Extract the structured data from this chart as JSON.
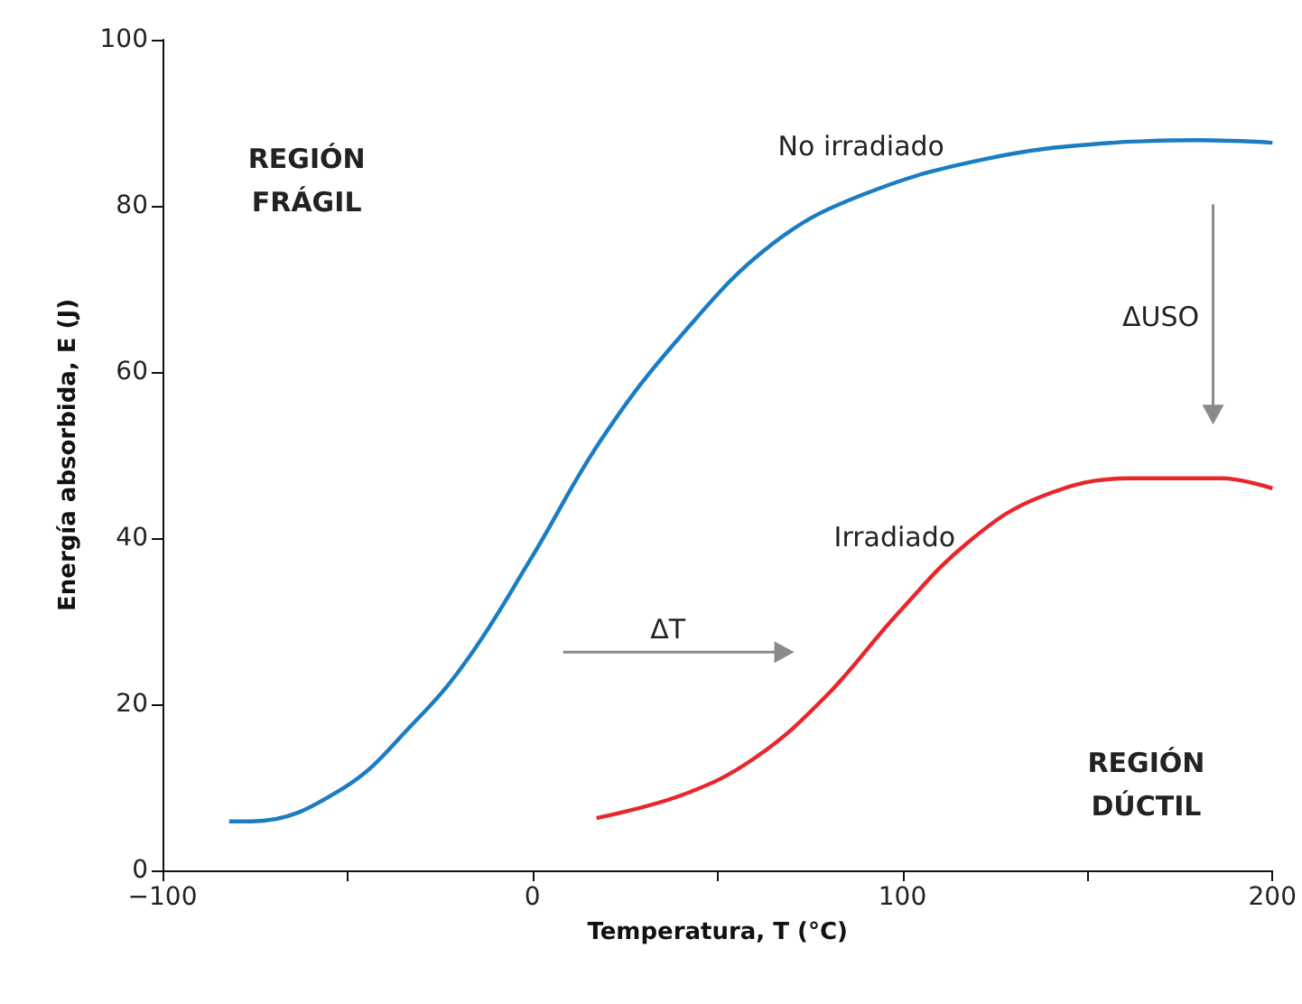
{
  "chart_data": {
    "type": "line",
    "xlabel": "Temperatura, T (°C)",
    "ylabel": "Energía absorbida, E (J)",
    "xlim": [
      -100,
      200
    ],
    "xticks": [
      {
        "value": -100,
        "label": "−100"
      },
      {
        "value": -50,
        "label": null
      },
      0,
      {
        "value": 50,
        "label": null
      },
      100,
      {
        "value": 150,
        "label": null
      },
      200
    ],
    "ylim": [
      0,
      100
    ],
    "yticks": [
      0,
      20,
      40,
      60,
      80,
      100
    ],
    "marker": "none",
    "line_style": "solid",
    "series": [
      {
        "color": "#1a7dc4",
        "x": [
          -82,
          -76,
          -51.5,
          -32,
          -17.6,
          -0.6,
          18.8,
          40.6,
          64.8,
          89,
          123,
          157,
          180,
          200
        ],
        "values": [
          5.9,
          5.9,
          9.8,
          17.8,
          25.4,
          37.4,
          52,
          64.6,
          75.4,
          81.3,
          85.7,
          87.6,
          87.9,
          87.6
        ]
      },
      {
        "color": "#e8262b",
        "x": [
          17.3,
          40.6,
          60,
          79.4,
          98.7,
          118,
          137.5,
          161.8,
          186,
          200
        ],
        "values": [
          6.3,
          9.1,
          13.5,
          21,
          30.9,
          39.6,
          45,
          47.2,
          47.2,
          46
        ]
      }
    ],
    "annotations": [
      "REGIÓN\nFRÁGIL",
      "No irradiado",
      "ΔUSO",
      "Irradiado",
      "ΔT",
      "REGIÓN\nDÚCTIL"
    ]
  }
}
